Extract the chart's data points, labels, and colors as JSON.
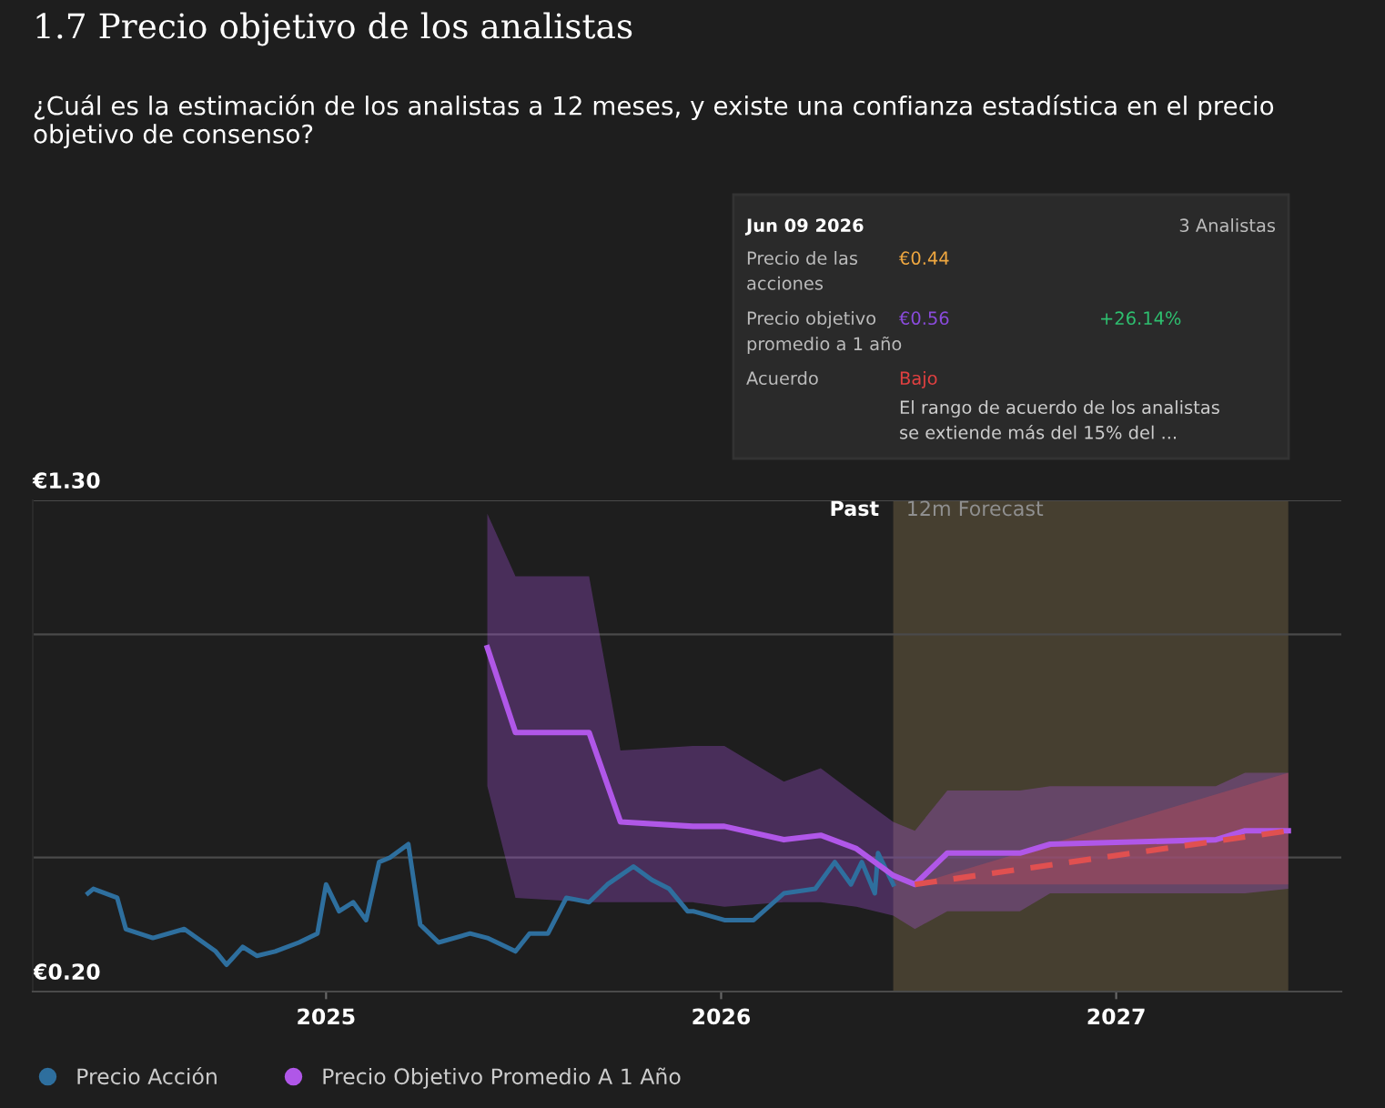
{
  "chart_data": {
    "type": "line",
    "title": "1.7 Precio objetivo de los analistas",
    "subtitle": "¿Cuál es la estimación de los analistas a 12 meses, y existe una confianza estadística en el precio objetivo de consenso?",
    "series": [
      {
        "name": "Precio Acción",
        "color": "#2e6f9e",
        "x": [
          "2024-05-26",
          "2024-05-31",
          "2024-06-22",
          "2024-06-30",
          "2024-07-25",
          "2024-08-23",
          "2024-09-21",
          "2024-10-01",
          "2024-10-16",
          "2024-10-29",
          "2024-11-15",
          "2024-12-07",
          "2024-12-24",
          "2025-01-01",
          "2025-01-13",
          "2025-01-26",
          "2025-02-07",
          "2025-02-19",
          "2025-03-01",
          "2025-03-18",
          "2025-03-29",
          "2025-04-15",
          "2025-05-14",
          "2025-05-30",
          "2025-06-25",
          "2025-07-08",
          "2025-07-25",
          "2025-08-11",
          "2025-09-01",
          "2025-09-18",
          "2025-10-12",
          "2025-10-29",
          "2025-11-14",
          "2025-12-01",
          "2025-12-06",
          "2026-01-04",
          "2026-01-31",
          "2026-02-28",
          "2026-03-29",
          "2026-04-16",
          "2026-05-01",
          "2026-05-11",
          "2026-05-23",
          "2026-05-26",
          "2026-06-09"
        ],
        "values": [
          0.42,
          0.43,
          0.41,
          0.34,
          0.32,
          0.34,
          0.29,
          0.26,
          0.3,
          0.28,
          0.29,
          0.31,
          0.33,
          0.44,
          0.38,
          0.4,
          0.36,
          0.49,
          0.5,
          0.53,
          0.35,
          0.31,
          0.33,
          0.32,
          0.29,
          0.33,
          0.33,
          0.41,
          0.4,
          0.44,
          0.48,
          0.45,
          0.43,
          0.38,
          0.38,
          0.36,
          0.36,
          0.42,
          0.43,
          0.49,
          0.44,
          0.49,
          0.42,
          0.51,
          0.44
        ]
      },
      {
        "name": "Precio Objetivo Promedio A 1 Año",
        "color": "#b057e8",
        "x": [
          "2025-05-30",
          "2025-06-25",
          "2025-09-01",
          "2025-09-30",
          "2025-12-06",
          "2026-01-04",
          "2026-02-28",
          "2026-04-03",
          "2026-05-06",
          "2026-06-09",
          "2026-06-29",
          "2026-07-29",
          "2026-10-04",
          "2026-11-01",
          "2027-04-03",
          "2027-04-30",
          "2027-06-09"
        ],
        "values": [
          0.97,
          0.78,
          0.78,
          0.58,
          0.57,
          0.57,
          0.54,
          0.55,
          0.52,
          0.46,
          0.44,
          0.51,
          0.51,
          0.53,
          0.54,
          0.56,
          0.56
        ],
        "upper": [
          1.27,
          1.13,
          1.13,
          0.74,
          0.75,
          0.75,
          0.67,
          0.7,
          0.64,
          0.58,
          0.56,
          0.65,
          0.65,
          0.66,
          0.66,
          0.69,
          0.69
        ],
        "lower": [
          0.66,
          0.41,
          0.4,
          0.4,
          0.4,
          0.39,
          0.4,
          0.4,
          0.39,
          0.37,
          0.34,
          0.38,
          0.38,
          0.42,
          0.42,
          0.42,
          0.43
        ]
      },
      {
        "color": "#e05050",
        "line_style": "dashed",
        "x": [
          "2026-06-29",
          "2027-06-09"
        ],
        "values": [
          0.44,
          0.56
        ],
        "upper": [
          0.44,
          0.69
        ],
        "lower": [
          0.44,
          0.44
        ]
      }
    ],
    "xlim": [
      "2024-04-05",
      "2027-07-28"
    ],
    "xticks": [
      {
        "value": "2025-01-01",
        "label": "2025"
      },
      {
        "value": "2026-01-01",
        "label": "2026"
      },
      {
        "value": "2027-01-01",
        "label": "2027"
      }
    ],
    "ylim": [
      0.2,
      1.3
    ],
    "yticks": [
      {
        "value": 0.2,
        "label": "€0.20"
      },
      {
        "value": 0.5,
        "label": null
      },
      {
        "value": 1.0,
        "label": null
      },
      {
        "value": 1.3,
        "label": "€1.30"
      }
    ],
    "grid": "y",
    "legend": "bottom left",
    "bands": [
      {
        "axis": "x",
        "from": "2026-06-09",
        "to": "2027-06-09",
        "label": "12m Forecast",
        "color": "#463f30"
      }
    ],
    "annotations": [
      {
        "text": "Past",
        "x": "2026-06-09",
        "y": 1.3
      },
      "Jun 09 2026",
      "3 Analistas",
      "Precio de las acciones",
      "€0.44",
      "Precio objetivo promedio a 1 año",
      "€0.56",
      "+26.14%",
      "Acuerdo",
      "Bajo",
      "El rango de acuerdo de los analistas se extiende más del 15% del ..."
    ]
  }
}
